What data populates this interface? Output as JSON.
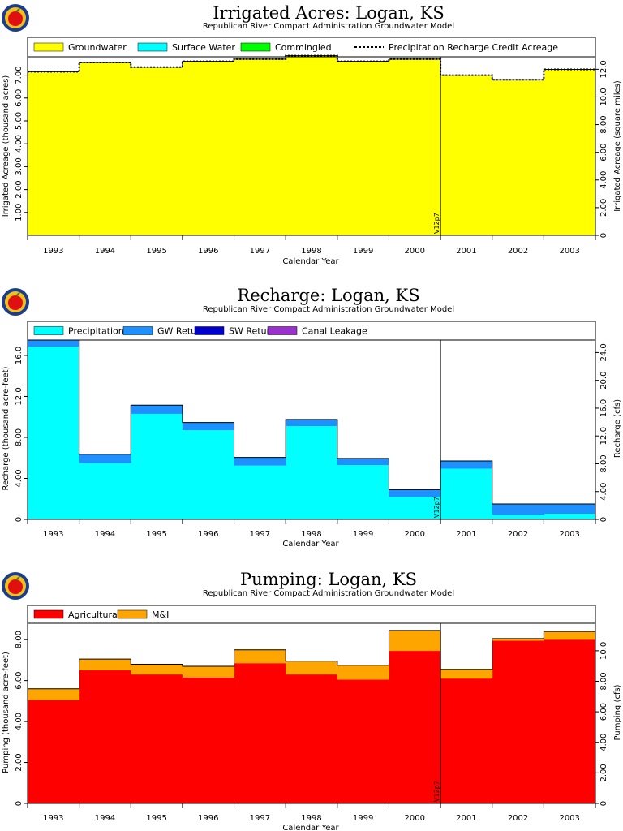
{
  "subtitle": "Republican River Compact Administration Groundwater Model",
  "logo_colors": {
    "ring": "#1c3c8c",
    "band": "#f0c020",
    "apple": "#e01010",
    "stem": "#4a7a10"
  },
  "charts": [
    {
      "id": "irrigated",
      "title": "Irrigated Acres: Logan, KS",
      "xlabel": "Calendar Year",
      "ylabel": "Irrigated Acreage (thousand acres)",
      "ylabel_right": "Irrigated Acreage (square miles)",
      "marker": "V12p7",
      "legend": [
        {
          "label": "Groundwater",
          "swatch": "#ffff00"
        },
        {
          "label": "Surface Water",
          "swatch": "#00ffff"
        },
        {
          "label": "Commingled",
          "swatch": "#00ff00"
        },
        {
          "label": "Precipitation Recharge Credit Acreage",
          "swatch": "dashed"
        }
      ],
      "yticks_left": [
        "1.00",
        "2.00",
        "3.00",
        "4.00",
        "5.00",
        "6.00",
        "7.00"
      ],
      "yticks_right": [
        "0",
        "2.00",
        "4.00",
        "6.00",
        "8.00",
        "10.0",
        "12.0"
      ],
      "xticks": [
        "1993",
        "1994",
        "1995",
        "1996",
        "1997",
        "1998",
        "1999",
        "2000",
        "2001",
        "2002",
        "2003"
      ]
    },
    {
      "id": "recharge",
      "title": "Recharge: Logan, KS",
      "xlabel": "Calendar Year",
      "ylabel": "Recharge (thousand acre-feet)",
      "ylabel_right": "Recharge (cfs)",
      "marker": "V12p7",
      "legend": [
        {
          "label": "Precipitation",
          "swatch": "#00ffff"
        },
        {
          "label": "GW Returns",
          "swatch": "#1e90ff"
        },
        {
          "label": "SW Returns",
          "swatch": "#0000cd"
        },
        {
          "label": "Canal Leakage",
          "swatch": "#9932cc"
        }
      ],
      "yticks_left": [
        "0",
        "4.00",
        "8.00",
        "12.0",
        "16.0"
      ],
      "yticks_right": [
        "0",
        "4.00",
        "8.00",
        "12.0",
        "16.0",
        "20.0",
        "24.0"
      ],
      "xticks": [
        "1993",
        "1994",
        "1995",
        "1996",
        "1997",
        "1998",
        "1999",
        "2000",
        "2001",
        "2002",
        "2003"
      ]
    },
    {
      "id": "pumping",
      "title": "Pumping: Logan, KS",
      "xlabel": "Calendar Year",
      "ylabel": "Pumping (thousand acre-feet)",
      "ylabel_right": "Pumping (cfs)",
      "marker": "V12p7",
      "legend": [
        {
          "label": "Agricultural",
          "swatch": "#ff0000"
        },
        {
          "label": "M&I",
          "swatch": "#ffa500"
        }
      ],
      "yticks_left": [
        "0",
        "2.00",
        "4.00",
        "6.00",
        "8.00"
      ],
      "yticks_right": [
        "0",
        "2.00",
        "4.00",
        "6.00",
        "8.00",
        "10.0"
      ],
      "xticks": [
        "1993",
        "1994",
        "1995",
        "1996",
        "1997",
        "1998",
        "1999",
        "2000",
        "2001",
        "2002",
        "2003"
      ]
    }
  ],
  "chart_data": [
    {
      "type": "area",
      "title": "Irrigated Acres: Logan, KS",
      "xlabel": "Calendar Year",
      "ylabel": "Irrigated Acreage (thousand acres)",
      "ylabel_right": "Irrigated Acreage (square miles)",
      "categories": [
        "1993",
        "1994",
        "1995",
        "1996",
        "1997",
        "1998",
        "1999",
        "2000",
        "2001",
        "2002",
        "2003"
      ],
      "ylim": [
        0,
        7.8
      ],
      "yticks": [
        1,
        2,
        3,
        4,
        5,
        6,
        7
      ],
      "series": [
        {
          "name": "Groundwater",
          "color": "#ffff00",
          "values": [
            7.15,
            7.55,
            7.35,
            7.6,
            7.7,
            7.85,
            7.6,
            7.7,
            7.0,
            6.8,
            7.25
          ]
        },
        {
          "name": "Surface Water",
          "color": "#00ffff",
          "values": [
            0,
            0,
            0,
            0,
            0,
            0,
            0,
            0,
            0,
            0,
            0
          ]
        },
        {
          "name": "Commingled",
          "color": "#00ff00",
          "values": [
            0,
            0,
            0,
            0,
            0,
            0,
            0,
            0,
            0,
            0,
            0
          ]
        },
        {
          "name": "Precipitation Recharge Credit Acreage",
          "style": "dashed",
          "values": [
            7.15,
            7.55,
            7.35,
            7.6,
            7.7,
            7.85,
            7.6,
            7.7,
            7.0,
            6.8,
            7.25
          ]
        }
      ],
      "annotations": [
        {
          "text": "V12p7",
          "position": "2000.5"
        }
      ]
    },
    {
      "type": "area",
      "title": "Recharge: Logan, KS",
      "xlabel": "Calendar Year",
      "ylabel": "Recharge (thousand acre-feet)",
      "ylabel_right": "Recharge (cfs)",
      "categories": [
        "1993",
        "1994",
        "1995",
        "1996",
        "1997",
        "1998",
        "1999",
        "2000",
        "2001",
        "2002",
        "2003"
      ],
      "ylim": [
        0,
        17.5
      ],
      "yticks": [
        0,
        4,
        8,
        12,
        16
      ],
      "series": [
        {
          "name": "Precipitation",
          "color": "#00ffff",
          "values": [
            16.85,
            5.5,
            10.3,
            8.7,
            5.25,
            9.1,
            5.3,
            2.2,
            4.95,
            0.45,
            0.55
          ]
        },
        {
          "name": "GW Returns",
          "color": "#1e90ff",
          "values": [
            0.65,
            0.85,
            0.85,
            0.75,
            0.8,
            0.65,
            0.65,
            0.7,
            0.75,
            1.05,
            0.95
          ]
        },
        {
          "name": "SW Returns",
          "color": "#0000cd",
          "values": [
            0,
            0,
            0,
            0,
            0,
            0,
            0,
            0,
            0,
            0,
            0
          ]
        },
        {
          "name": "Canal Leakage",
          "color": "#9932cc",
          "values": [
            0,
            0,
            0,
            0,
            0,
            0,
            0,
            0,
            0,
            0,
            0
          ]
        }
      ],
      "annotations": [
        {
          "text": "V12p7",
          "position": "2000.5"
        }
      ]
    },
    {
      "type": "area",
      "title": "Pumping: Logan, KS",
      "xlabel": "Calendar Year",
      "ylabel": "Pumping (thousand acre-feet)",
      "ylabel_right": "Pumping (cfs)",
      "categories": [
        "1993",
        "1994",
        "1995",
        "1996",
        "1997",
        "1998",
        "1999",
        "2000",
        "2001",
        "2002",
        "2003"
      ],
      "ylim": [
        0,
        8.8
      ],
      "yticks": [
        0,
        2,
        4,
        6,
        8
      ],
      "series": [
        {
          "name": "Agricultural",
          "color": "#ff0000",
          "values": [
            5.05,
            6.5,
            6.3,
            6.15,
            6.85,
            6.3,
            6.05,
            7.45,
            6.1,
            7.95,
            8.0
          ]
        },
        {
          "name": "M&I",
          "color": "#ffa500",
          "values": [
            0.55,
            0.55,
            0.5,
            0.55,
            0.65,
            0.65,
            0.7,
            1.0,
            0.45,
            0.1,
            0.4
          ]
        }
      ],
      "annotations": [
        {
          "text": "V12p7",
          "position": "2000.5"
        }
      ]
    }
  ]
}
